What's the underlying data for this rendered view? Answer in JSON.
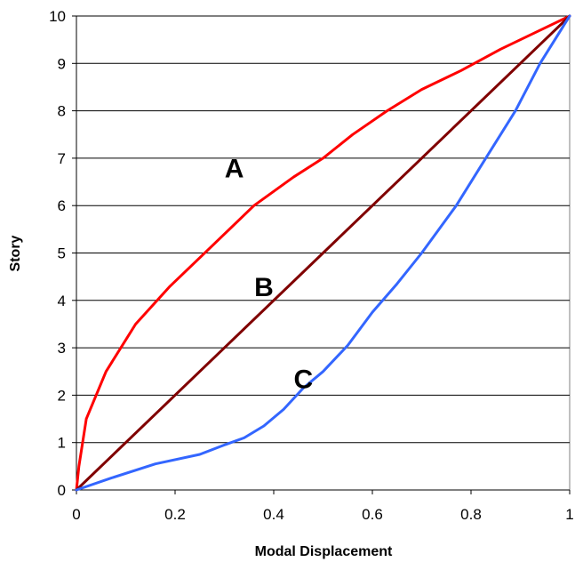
{
  "chart_data": {
    "type": "line",
    "title": "",
    "xlabel": "Modal Displacement",
    "ylabel": "Story",
    "xlim": [
      0,
      1
    ],
    "ylim": [
      0,
      10
    ],
    "xticks": [
      0,
      0.2,
      0.4,
      0.6,
      0.8,
      1
    ],
    "xtick_labels": [
      "0",
      "0.2",
      "0.4",
      "0.6",
      "0.8",
      "1"
    ],
    "yticks": [
      0,
      1,
      2,
      3,
      4,
      5,
      6,
      7,
      8,
      9,
      10
    ],
    "ytick_labels": [
      "0",
      "1",
      "2",
      "3",
      "4",
      "5",
      "6",
      "7",
      "8",
      "9",
      "10"
    ],
    "grid": "horizontal",
    "legend": "none",
    "series": [
      {
        "label": "A",
        "color": "#ff0000",
        "label_at": [
          0.32,
          6.8
        ],
        "x": [
          0,
          0.005,
          0.02,
          0.06,
          0.12,
          0.19,
          0.27,
          0.36,
          0.44,
          0.5,
          0.56,
          0.63,
          0.7,
          0.78,
          0.86,
          0.93,
          1.0
        ],
        "y": [
          0,
          0.5,
          1.5,
          2.5,
          3.5,
          4.3,
          5.1,
          6.0,
          6.6,
          7.0,
          7.5,
          8.0,
          8.45,
          8.85,
          9.3,
          9.65,
          10.0
        ]
      },
      {
        "label": "B",
        "color": "#800000",
        "label_at": [
          0.38,
          4.3
        ],
        "x": [
          0,
          1
        ],
        "y": [
          0,
          10
        ]
      },
      {
        "label": "C",
        "color": "#3366ff",
        "label_at": [
          0.46,
          2.35
        ],
        "x": [
          0,
          0.07,
          0.16,
          0.25,
          0.3,
          0.34,
          0.38,
          0.42,
          0.46,
          0.5,
          0.55,
          0.6,
          0.65,
          0.7,
          0.77,
          0.83,
          0.89,
          0.94,
          1.0
        ],
        "y": [
          0,
          0.25,
          0.55,
          0.75,
          0.95,
          1.1,
          1.35,
          1.7,
          2.15,
          2.5,
          3.05,
          3.75,
          4.35,
          5.0,
          6.0,
          7.0,
          8.0,
          9.0,
          10.0
        ]
      }
    ]
  }
}
